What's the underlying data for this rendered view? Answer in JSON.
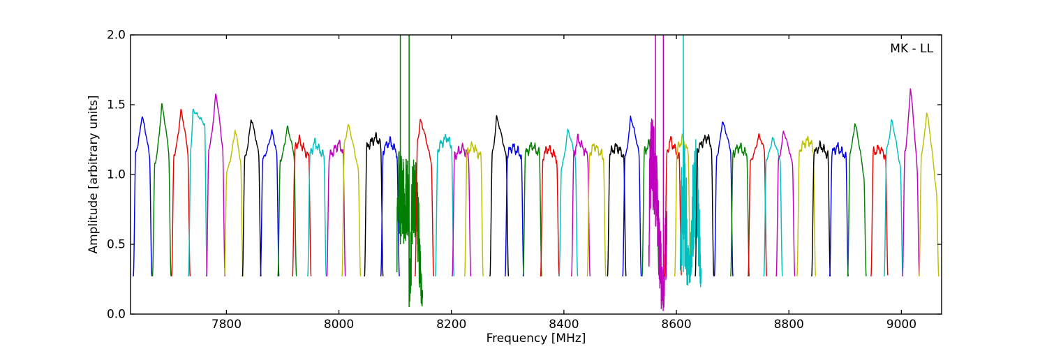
{
  "figure": {
    "corner_label": "MK - LL",
    "background": "#ffffff",
    "frame_color": "#000000"
  },
  "chart_data": {
    "type": "line",
    "title": "",
    "corner_label": "MK - LL",
    "xlabel": "Frequency [MHz]",
    "ylabel": "Amplitude [arbitrary units]",
    "xlim": [
      7629.5,
      9071.5
    ],
    "ylim": [
      0.0,
      2.0
    ],
    "xticks": [
      7800,
      8000,
      8200,
      8400,
      8600,
      8800,
      9000
    ],
    "xtick_labels": [
      "7800",
      "8000",
      "8200",
      "8400",
      "8600",
      "8800",
      "9000"
    ],
    "yticks": [
      0.0,
      0.5,
      1.0,
      1.5,
      2.0
    ],
    "ytick_labels": [
      "0.0",
      "0.5",
      "1.0",
      "1.5",
      "2.0"
    ],
    "grid": false,
    "legend": "none",
    "colors": {
      "b": "#0000ee",
      "g": "#007f00",
      "r": "#e80000",
      "c": "#00bfbf",
      "m": "#bf00bf",
      "y": "#bfbf00",
      "k": "#000000"
    },
    "trough_amplitude": 0.27,
    "edge_rise_mhz": 4.3,
    "default_half_width_mhz": 16.5,
    "bands": [
      {
        "f": 7651,
        "c": "b",
        "a": 1.42,
        "p": 0.45,
        "e": [
          0.82,
          0.8
        ],
        "s": 1
      },
      {
        "f": 7685,
        "c": "g",
        "a": 1.5,
        "p": 0.5,
        "e": [
          0.72,
          0.78
        ],
        "s": 1
      },
      {
        "f": 7719,
        "c": "r",
        "a": 1.46,
        "p": 0.5,
        "e": [
          0.78,
          0.8
        ],
        "s": 1
      },
      {
        "f": 7749,
        "c": "c",
        "a": 1.46,
        "p": 0.15,
        "e": [
          0.82,
          0.93
        ],
        "s": 1
      },
      {
        "f": 7781,
        "c": "m",
        "a": 1.58,
        "p": 0.5,
        "e": [
          0.75,
          0.75
        ],
        "s": 1
      },
      {
        "f": 7813,
        "c": "y",
        "a": 1.32,
        "p": 0.6,
        "e": [
          0.78,
          0.82
        ],
        "s": 1
      },
      {
        "f": 7845,
        "c": "k",
        "a": 1.4,
        "p": 0.45,
        "e": [
          0.8,
          0.82
        ],
        "s": 1
      },
      {
        "f": 7877,
        "c": "b",
        "a": 1.31,
        "p": 0.65,
        "e": [
          0.85,
          0.88
        ],
        "s": 1
      },
      {
        "f": 7908,
        "c": "g",
        "a": 1.34,
        "p": 0.5,
        "e": [
          0.82,
          0.85
        ],
        "s": 1
      },
      {
        "f": 7934,
        "c": "r",
        "a": 1.25,
        "p": 0.3,
        "e": [
          0.94,
          0.9
        ],
        "s": 0
      },
      {
        "f": 7961,
        "c": "c",
        "a": 1.23,
        "p": 0.35,
        "e": [
          0.93,
          0.92
        ],
        "s": 0
      },
      {
        "f": 7995,
        "c": "m",
        "a": 1.22,
        "p": 0.75,
        "e": [
          0.92,
          0.95
        ],
        "s": 0
      },
      {
        "f": 8022,
        "c": "y",
        "a": 1.36,
        "p": 0.25,
        "e": [
          0.9,
          0.76
        ],
        "s": 1
      },
      {
        "f": 8062,
        "c": "k",
        "a": 1.27,
        "p": 0.7,
        "e": [
          0.94,
          0.95
        ],
        "s": 0
      },
      {
        "f": 8091,
        "c": "b",
        "a": 1.24,
        "p": 0.5,
        "e": [
          0.95,
          0.93
        ],
        "s": 0
      },
      {
        "c": "g",
        "t": "n",
        "r": [
          8103,
          8149
        ],
        "spikes": [
          [
            8109.2,
            0.5
          ],
          [
            8124.8,
            0.05
          ]
        ],
        "prof": [
          [
            8103,
            0.5,
            0.2
          ],
          [
            8105,
            1.0,
            0.22
          ],
          [
            8108,
            0.88,
            0.28
          ],
          [
            8112,
            0.85,
            0.28
          ],
          [
            8116,
            0.78,
            0.26
          ],
          [
            8120,
            0.85,
            0.28
          ],
          [
            8123,
            0.72,
            0.3
          ],
          [
            8126,
            0.16,
            0.12
          ],
          [
            8129,
            0.55,
            0.3
          ],
          [
            8132,
            0.88,
            0.26
          ],
          [
            8136,
            0.8,
            0.28
          ],
          [
            8141,
            0.6,
            0.28
          ],
          [
            8145,
            0.25,
            0.15
          ],
          [
            8148,
            0.1,
            0.07
          ]
        ]
      },
      {
        "f": 8152,
        "c": "r",
        "a": 1.39,
        "p": 0.2,
        "e": [
          0.9,
          0.78
        ],
        "s": 1
      },
      {
        "f": 8188,
        "c": "c",
        "a": 1.27,
        "p": 0.65,
        "e": [
          0.93,
          0.95
        ],
        "s": 0
      },
      {
        "f": 8218,
        "c": "m",
        "a": 1.19,
        "p": 0.6,
        "e": [
          0.95,
          0.95
        ],
        "s": 0
      },
      {
        "f": 8240,
        "c": "y",
        "a": 1.21,
        "p": 0.4,
        "e": [
          0.95,
          0.93
        ],
        "s": 0
      },
      {
        "f": 8285,
        "c": "k",
        "a": 1.41,
        "p": 0.3,
        "e": [
          0.82,
          0.8
        ],
        "s": 1
      },
      {
        "f": 8312,
        "c": "b",
        "a": 1.2,
        "p": 0.4,
        "e": [
          0.96,
          0.95
        ],
        "s": 0
      },
      {
        "f": 8344,
        "c": "g",
        "a": 1.21,
        "p": 0.5,
        "e": [
          0.95,
          0.95
        ],
        "s": 0
      },
      {
        "f": 8375,
        "c": "r",
        "a": 1.19,
        "p": 0.4,
        "e": [
          0.95,
          0.94
        ],
        "s": 0
      },
      {
        "f": 8408,
        "c": "c",
        "a": 1.32,
        "p": 0.45,
        "e": [
          0.8,
          0.85
        ],
        "s": 1
      },
      {
        "f": 8430,
        "c": "m",
        "a": 1.26,
        "p": 0.3,
        "e": [
          0.9,
          0.9
        ],
        "s": 0
      },
      {
        "f": 8458,
        "c": "y",
        "a": 1.21,
        "p": 0.35,
        "e": [
          0.95,
          0.93
        ],
        "s": 0
      },
      {
        "f": 8494,
        "c": "k",
        "a": 1.2,
        "p": 0.5,
        "e": [
          0.96,
          0.95
        ],
        "s": 0
      },
      {
        "f": 8521,
        "c": "b",
        "a": 1.41,
        "p": 0.4,
        "e": [
          0.8,
          0.82
        ],
        "s": 1
      },
      {
        "f": 8554,
        "c": "g",
        "a": 1.22,
        "p": 0.4,
        "e": [
          0.95,
          0.9
        ],
        "s": 0,
        "hw": 15
      },
      {
        "c": "m",
        "t": "n",
        "r": [
          8551,
          8583
        ],
        "spikes": [
          [
            8562.8,
            0.85
          ],
          [
            8576.8,
            0.05
          ]
        ],
        "prof": [
          [
            8551,
            0.45,
            0.18
          ],
          [
            8553,
            1.05,
            0.28
          ],
          [
            8556,
            1.12,
            0.28
          ],
          [
            8560,
            1.05,
            0.3
          ],
          [
            8564,
            0.9,
            0.3
          ],
          [
            8568,
            0.65,
            0.32
          ],
          [
            8571,
            0.4,
            0.28
          ],
          [
            8574,
            0.2,
            0.16
          ],
          [
            8577,
            0.1,
            0.07
          ],
          [
            8579,
            0.3,
            0.22
          ],
          [
            8582,
            0.55,
            0.25
          ]
        ]
      },
      {
        "f": 8594,
        "c": "r",
        "a": 1.25,
        "p": 0.3,
        "e": [
          0.92,
          0.9
        ],
        "s": 0,
        "hw": 15
      },
      {
        "f": 8611,
        "c": "y",
        "a": 1.26,
        "p": 0.5,
        "e": [
          0.93,
          0.92
        ],
        "s": 0,
        "hw": 14
      },
      {
        "c": "c",
        "t": "n",
        "r": [
          8607,
          8644
        ],
        "spikes": [
          [
            8612.3,
            0.3
          ]
        ],
        "prof": [
          [
            8607,
            0.4,
            0.15
          ],
          [
            8609,
            0.75,
            0.38
          ],
          [
            8612,
            0.88,
            0.42
          ],
          [
            8615,
            0.8,
            0.42
          ],
          [
            8618,
            0.6,
            0.33
          ],
          [
            8621,
            0.35,
            0.15
          ],
          [
            8624,
            0.3,
            0.12
          ],
          [
            8627,
            0.45,
            0.25
          ],
          [
            8630,
            0.78,
            0.38
          ],
          [
            8634,
            0.9,
            0.42
          ],
          [
            8637,
            0.85,
            0.4
          ],
          [
            8640,
            0.6,
            0.28
          ],
          [
            8643,
            0.3,
            0.1
          ]
        ]
      },
      {
        "f": 8650,
        "c": "k",
        "a": 1.27,
        "p": 0.7,
        "e": [
          0.93,
          0.95
        ],
        "s": 0
      },
      {
        "f": 8684,
        "c": "b",
        "a": 1.38,
        "p": 0.4,
        "e": [
          0.82,
          0.85
        ],
        "s": 1
      },
      {
        "f": 8713,
        "c": "g",
        "a": 1.2,
        "p": 0.5,
        "e": [
          0.96,
          0.95
        ],
        "s": 0
      },
      {
        "f": 8744,
        "c": "r",
        "a": 1.28,
        "p": 0.6,
        "e": [
          0.86,
          0.92
        ],
        "s": 1
      },
      {
        "f": 8772,
        "c": "c",
        "a": 1.26,
        "p": 0.45,
        "e": [
          0.88,
          0.88
        ],
        "s": 1
      },
      {
        "f": 8794,
        "c": "m",
        "a": 1.31,
        "p": 0.35,
        "e": [
          0.85,
          0.82
        ],
        "s": 1
      },
      {
        "f": 8831,
        "c": "y",
        "a": 1.25,
        "p": 0.65,
        "e": [
          0.94,
          0.95
        ],
        "s": 0
      },
      {
        "f": 8857,
        "c": "k",
        "a": 1.21,
        "p": 0.5,
        "e": [
          0.95,
          0.94
        ],
        "s": 0
      },
      {
        "f": 8889,
        "c": "b",
        "a": 1.2,
        "p": 0.4,
        "e": [
          0.96,
          0.94
        ],
        "s": 0
      },
      {
        "f": 8921,
        "c": "g",
        "a": 1.37,
        "p": 0.35,
        "e": [
          0.85,
          0.72
        ],
        "s": 1
      },
      {
        "f": 8961,
        "c": "r",
        "a": 1.19,
        "p": 0.5,
        "e": [
          0.97,
          0.95
        ],
        "s": 0,
        "hw": 15
      },
      {
        "f": 8986,
        "c": "c",
        "a": 1.39,
        "p": 0.35,
        "e": [
          0.85,
          0.75
        ],
        "s": 1
      },
      {
        "f": 9017,
        "c": "m",
        "a": 1.62,
        "p": 0.45,
        "e": [
          0.72,
          0.65
        ],
        "s": 1,
        "hw": 15
      },
      {
        "f": 9049,
        "c": "y",
        "a": 1.45,
        "p": 0.35,
        "e": [
          0.8,
          0.6
        ],
        "s": 1,
        "hw": 17.5
      }
    ]
  }
}
